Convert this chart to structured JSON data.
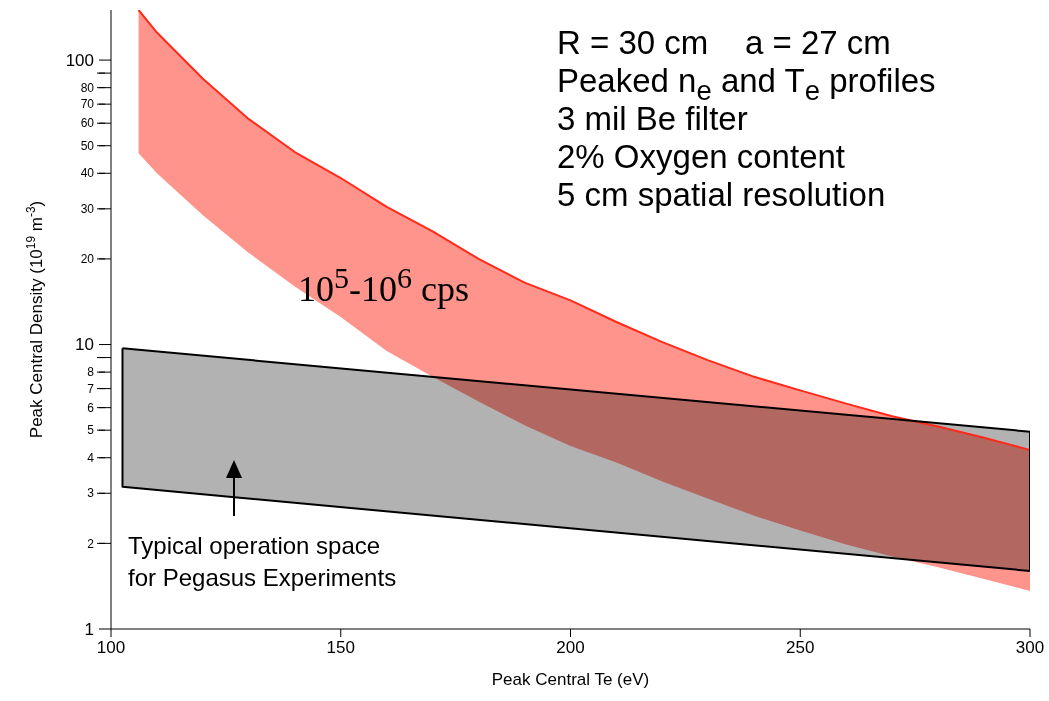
{
  "chart_data": {
    "type": "line",
    "grid": false,
    "xlabel": "Peak Central Te (eV)",
    "ylabel": "Peak Central Density (10$^{19}$ m$^{-3}$)",
    "log": "y",
    "xlim": [
      100,
      300
    ],
    "xticks": [
      100,
      150,
      200,
      250,
      300
    ],
    "ylim": [
      1,
      150
    ],
    "yticks": [
      1,
      2,
      3,
      4,
      5,
      6,
      7,
      8,
      {
        "value": 9,
        "label": null
      },
      10,
      20,
      30,
      40,
      50,
      60,
      70,
      80,
      {
        "value": 90,
        "label": null
      },
      100
    ],
    "series": [
      {
        "color": "#ff2a1a",
        "x": [
          106,
          110,
          120,
          130,
          140,
          150,
          160,
          170,
          180,
          190,
          200,
          210,
          220,
          230,
          240,
          250,
          260,
          270,
          280,
          290,
          300
        ],
        "values": [
          150,
          125,
          86,
          62,
          47.5,
          38.5,
          30.5,
          25,
          20,
          16.5,
          14.3,
          12,
          10.2,
          8.8,
          7.7,
          6.9,
          6.2,
          5.6,
          5.15,
          4.7,
          4.26
        ],
        "lower": [
          47,
          40,
          28.5,
          21,
          16,
          12.5,
          9.5,
          7.7,
          6.3,
          5.2,
          4.4,
          3.85,
          3.3,
          2.87,
          2.5,
          2.22,
          1.98,
          1.8,
          1.65,
          1.5,
          1.36
        ],
        "upper": [
          150,
          125,
          86,
          62,
          47.5,
          38.5,
          30.5,
          25,
          20,
          16.5,
          14.3,
          12,
          10.2,
          8.8,
          7.7,
          6.9,
          6.2,
          5.6,
          5.15,
          4.7,
          4.26
        ]
      },
      {
        "color": "#000000",
        "x": [
          102.5,
          300
        ],
        "values": [
          9.7,
          4.94
        ],
        "lower": [
          3.16,
          1.6
        ],
        "upper": [
          9.7,
          4.94
        ]
      },
      {
        "color": "#000000",
        "x": [
          102.5,
          102.5,
          300,
          300
        ],
        "values": [
          9.7,
          3.16,
          1.6,
          4.94
        ]
      }
    ],
    "annotations": [
      "R = 30 cm    a = 27 cm",
      "Peaked n$_{e}$ and T$_{e}$ profiles",
      "3 mil Be filter",
      "2% Oxygen content",
      "5 cm spatial resolution",
      "10$^{5}$-10$^{6}$ cps",
      "Typical operation space\nfor Pegasus Experiments"
    ]
  }
}
